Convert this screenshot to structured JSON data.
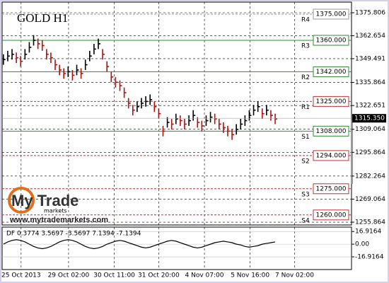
{
  "chart_data": {
    "type": "hlc",
    "title": "GOLD H1",
    "watermark": {
      "brand": "My Trade",
      "sub": "markets",
      "url": "www.mytrademarkets.com"
    },
    "xlim": [
      -0.3,
      80.7
    ],
    "xticks": [
      {
        "value": 4.1,
        "label": "25 Oct 2013"
      },
      {
        "value": 15.1,
        "label": "29 Oct 02:00"
      },
      {
        "value": 25.7,
        "label": "30 Oct 11:00"
      },
      {
        "value": 36,
        "label": "31 Oct 20:00"
      },
      {
        "value": 46.6,
        "label": "4 Nov 07:00"
      },
      {
        "value": 57.2,
        "label": "5 Nov 16:00"
      },
      {
        "value": 67.5,
        "label": "7 Nov 02:00"
      }
    ],
    "ylim": [
      1254.25,
      1381.88
    ],
    "yticks": [
      1375.806,
      1362.654,
      1349.491,
      1335.864,
      1322.651,
      1309.064,
      1295.864,
      1282.264,
      1269.064,
      1255.864
    ],
    "grid": true,
    "high": [
      1352,
      1354,
      1355,
      1353,
      1351,
      1355,
      1359,
      1363,
      1361,
      1360,
      1355,
      1353,
      1349,
      1346,
      1344,
      1345,
      1343,
      1346,
      1344,
      1349,
      1354,
      1358,
      1361,
      1355,
      1348,
      1342,
      1339,
      1337,
      1333,
      1327,
      1323,
      1325,
      1327,
      1328,
      1329,
      1325,
      1321,
      1311,
      1316,
      1315,
      1318,
      1317,
      1315,
      1317,
      1320,
      1316,
      1314,
      1317,
      1319,
      1318,
      1315,
      1313,
      1311,
      1309,
      1312,
      1315,
      1317,
      1320,
      1323,
      1325,
      1321,
      1323,
      1320,
      1318
    ],
    "low": [
      1346,
      1348,
      1349,
      1347,
      1345,
      1349,
      1353,
      1357,
      1355,
      1354,
      1349,
      1347,
      1343,
      1340,
      1338,
      1339,
      1337,
      1340,
      1338,
      1343,
      1348,
      1352,
      1355,
      1349,
      1342,
      1336,
      1333,
      1331,
      1327,
      1321,
      1317,
      1319,
      1321,
      1322,
      1323,
      1319,
      1315,
      1305,
      1310,
      1309,
      1312,
      1311,
      1309,
      1311,
      1314,
      1310,
      1308,
      1311,
      1313,
      1312,
      1309,
      1307,
      1305,
      1303,
      1306,
      1309,
      1311,
      1314,
      1317,
      1319,
      1315,
      1317,
      1314,
      1312
    ],
    "close": [
      1349,
      1351,
      1352,
      1350,
      1348,
      1352,
      1356,
      1360,
      1358,
      1357,
      1352,
      1350,
      1346,
      1343,
      1341,
      1342,
      1340,
      1343,
      1341,
      1346,
      1351,
      1355,
      1358,
      1352,
      1345,
      1339,
      1336,
      1334,
      1330,
      1324,
      1320,
      1322,
      1324,
      1325,
      1326,
      1322,
      1318,
      1308,
      1313,
      1312,
      1315,
      1314,
      1312,
      1314,
      1317,
      1313,
      1311,
      1314,
      1316,
      1315,
      1312,
      1310,
      1308,
      1306,
      1309,
      1312,
      1314,
      1317,
      1320,
      1322,
      1318,
      1320,
      1317,
      1315
    ],
    "current_price": {
      "value": 1315.35,
      "label": "1315.350"
    },
    "levels": [
      {
        "name": "R4",
        "value": 1375,
        "label": "1375.000",
        "color": "#9a9a9a",
        "dashed": true
      },
      {
        "name": "R3",
        "value": 1360,
        "label": "1360.000",
        "color": "#2e8b2e",
        "dashed": false
      },
      {
        "name": "R2",
        "value": 1342,
        "label": "1342.000",
        "color": "#2e8b2e",
        "dashed": false
      },
      {
        "name": "R1",
        "value": 1325,
        "label": "1325.000",
        "color": "#c03030",
        "dashed": true
      },
      {
        "name": "S1",
        "value": 1308,
        "label": "1308.000",
        "color": "#2e8b2e",
        "dashed": false
      },
      {
        "name": "S2",
        "value": 1294,
        "label": "1294.000",
        "color": "#c03030",
        "dashed": true
      },
      {
        "name": "S3",
        "value": 1275,
        "label": "1275.000",
        "color": "#c03030",
        "dashed": true
      },
      {
        "name": "S4",
        "value": 1260,
        "label": "1260.000",
        "color": "#c03030",
        "dashed": true
      }
    ],
    "indicator": {
      "label": "DF 0.3774 3.5697 -3.5697 7.1394 -7.1394",
      "ylim": [
        -33.9,
        22.8
      ],
      "yticks": [
        16.9164,
        {
          "value": 0,
          "label": "0.00"
        },
        -16.9164
      ],
      "color": "#000000",
      "values": [
        0,
        3,
        5,
        6,
        5,
        3,
        0,
        -3,
        -5,
        -6,
        -5,
        -3,
        0,
        3,
        5,
        6,
        5,
        3,
        0,
        -3,
        -5,
        -6,
        -5,
        -3,
        0,
        2,
        4,
        5,
        4,
        2,
        0,
        -2,
        -4,
        -5,
        -4,
        -2,
        0,
        2,
        4,
        5,
        4,
        2,
        0,
        -2,
        -4,
        -5,
        -4,
        -2,
        0,
        2,
        3,
        4,
        3,
        2,
        0,
        -1,
        -3,
        -4,
        -3,
        -2,
        0,
        1,
        2,
        3
      ]
    }
  }
}
